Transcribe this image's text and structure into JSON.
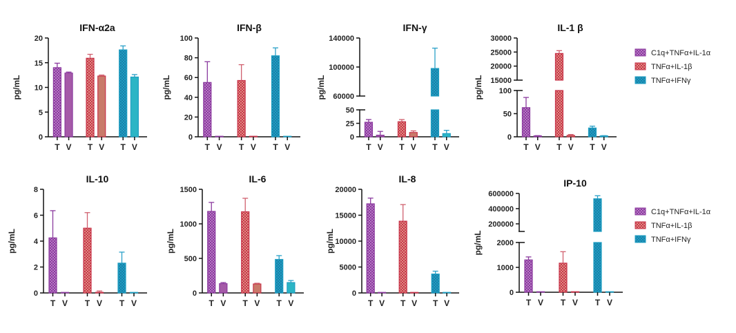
{
  "chart_data": [
    {
      "type": "bar",
      "title": "IFN-α2a",
      "ylabel": "pg/mL",
      "categories": [
        "T",
        "V",
        "T",
        "V",
        "T",
        "V"
      ],
      "ylim": [
        0,
        20
      ],
      "yticks": [
        0,
        5,
        10,
        15,
        20
      ],
      "series": [
        {
          "name": "C1q+TNFα+IL-1α",
          "values": [
            14.0,
            12.9
          ],
          "errors": [
            0.9,
            0.2
          ]
        },
        {
          "name": "TNFα+IL-1β",
          "values": [
            15.9,
            12.3
          ],
          "errors": [
            0.8,
            0.2
          ]
        },
        {
          "name": "TNFα+IFNγ",
          "values": [
            17.6,
            12.1
          ],
          "errors": [
            0.8,
            0.5
          ]
        }
      ]
    },
    {
      "type": "bar",
      "title": "IFN-β",
      "ylabel": "pg/mL",
      "categories": [
        "T",
        "V",
        "T",
        "V",
        "T",
        "V"
      ],
      "ylim": [
        0,
        100
      ],
      "yticks": [
        0,
        20,
        40,
        60,
        80,
        100
      ],
      "series": [
        {
          "name": "C1q+TNFα+IL-1α",
          "values": [
            55,
            0
          ],
          "errors": [
            21,
            0
          ]
        },
        {
          "name": "TNFα+IL-1β",
          "values": [
            57,
            0.5
          ],
          "errors": [
            16,
            0
          ]
        },
        {
          "name": "TNFα+IFNγ",
          "values": [
            82,
            0
          ],
          "errors": [
            8,
            0
          ]
        }
      ]
    },
    {
      "type": "bar",
      "title": "IFN-γ",
      "ylabel": "pg/mL",
      "categories": [
        "T",
        "V",
        "T",
        "V",
        "T",
        "V"
      ],
      "broken_axis": {
        "lower": [
          0,
          50
        ],
        "upper": [
          60000,
          140000
        ]
      },
      "yticks_lower": [
        0,
        25,
        50
      ],
      "yticks_upper": [
        60000,
        100000,
        140000
      ],
      "series": [
        {
          "name": "C1q+TNFα+IL-1α",
          "values": [
            27,
            3
          ],
          "errors": [
            5,
            7
          ]
        },
        {
          "name": "TNFα+IL-1β",
          "values": [
            28,
            8
          ],
          "errors": [
            4,
            3
          ]
        },
        {
          "name": "TNFα+IFNγ",
          "values": [
            98000,
            6
          ],
          "errors": [
            28000,
            6
          ]
        }
      ]
    },
    {
      "type": "bar",
      "title": "IL-1 β",
      "ylabel": "pg/mL",
      "categories": [
        "T",
        "V",
        "T",
        "V",
        "T",
        "V"
      ],
      "broken_axis": {
        "lower": [
          0,
          100
        ],
        "upper": [
          15000,
          30000
        ]
      },
      "yticks_lower": [
        0,
        50,
        100
      ],
      "yticks_upper": [
        15000,
        20000,
        25000,
        30000
      ],
      "series": [
        {
          "name": "C1q+TNFα+IL-1α",
          "values": [
            63,
            2
          ],
          "errors": [
            22,
            0.5
          ]
        },
        {
          "name": "TNFα+IL-1β",
          "values": [
            24500,
            3
          ],
          "errors": [
            1000,
            2
          ]
        },
        {
          "name": "TNFα+IFNγ",
          "values": [
            19,
            2
          ],
          "errors": [
            4,
            0.5
          ]
        }
      ]
    },
    {
      "type": "bar",
      "title": "IL-10",
      "ylabel": "pg/mL",
      "categories": [
        "T",
        "V",
        "T",
        "V",
        "T",
        "V"
      ],
      "ylim": [
        0,
        8
      ],
      "yticks": [
        0,
        2,
        4,
        6,
        8
      ],
      "series": [
        {
          "name": "C1q+TNFα+IL-1α",
          "values": [
            4.25,
            0
          ],
          "errors": [
            2.1,
            0
          ]
        },
        {
          "name": "TNFα+IL-1β",
          "values": [
            5.0,
            0.05
          ],
          "errors": [
            1.2,
            0.1
          ]
        },
        {
          "name": "TNFα+IFNγ",
          "values": [
            2.3,
            0
          ],
          "errors": [
            0.85,
            0
          ]
        }
      ]
    },
    {
      "type": "bar",
      "title": "IL-6",
      "ylabel": "pg/mL",
      "categories": [
        "T",
        "V",
        "T",
        "V",
        "T",
        "V"
      ],
      "ylim": [
        0,
        1500
      ],
      "yticks": [
        0,
        500,
        1000,
        1500
      ],
      "series": [
        {
          "name": "C1q+TNFα+IL-1α",
          "values": [
            1180,
            135
          ],
          "errors": [
            130,
            15
          ]
        },
        {
          "name": "TNFα+IL-1β",
          "values": [
            1175,
            130
          ],
          "errors": [
            195,
            10
          ]
        },
        {
          "name": "TNFα+IFNγ",
          "values": [
            485,
            150
          ],
          "errors": [
            55,
            30
          ]
        }
      ]
    },
    {
      "type": "bar",
      "title": "IL-8",
      "ylabel": "pg/mL",
      "categories": [
        "T",
        "V",
        "T",
        "V",
        "T",
        "V"
      ],
      "ylim": [
        0,
        20000
      ],
      "yticks": [
        0,
        5000,
        10000,
        15000,
        20000
      ],
      "series": [
        {
          "name": "C1q+TNFα+IL-1α",
          "values": [
            17200,
            50
          ],
          "errors": [
            1100,
            0
          ]
        },
        {
          "name": "TNFα+IL-1β",
          "values": [
            13850,
            50
          ],
          "errors": [
            3200,
            0
          ]
        },
        {
          "name": "TNFα+IFNγ",
          "values": [
            3650,
            50
          ],
          "errors": [
            550,
            0
          ]
        }
      ]
    },
    {
      "type": "bar",
      "title": "IP-10",
      "ylabel": "pg/mL",
      "categories": [
        "T",
        "V",
        "T",
        "V",
        "T",
        "V"
      ],
      "broken_axis": {
        "lower": [
          0,
          2000
        ],
        "upper": [
          100000,
          600000
        ]
      },
      "yticks_lower": [
        0,
        1000,
        2000
      ],
      "yticks_upper": [
        200000,
        400000,
        600000
      ],
      "series": [
        {
          "name": "C1q+TNFα+IL-1α",
          "values": [
            1300,
            0
          ],
          "errors": [
            120,
            0
          ]
        },
        {
          "name": "TNFα+IL-1β",
          "values": [
            1170,
            5
          ],
          "errors": [
            460,
            0
          ]
        },
        {
          "name": "TNFα+IFNγ",
          "values": [
            530000,
            5
          ],
          "errors": [
            40000,
            0
          ]
        }
      ]
    }
  ],
  "legend": {
    "items": [
      {
        "label": "C1q+TNFα+IL-1α",
        "color": "#8B3A9E"
      },
      {
        "label": "TNFα+IL-1β",
        "color": "#C8344A"
      },
      {
        "label": "TNFα+IFNγ",
        "color": "#1E9EC2"
      }
    ]
  },
  "colors": {
    "purple_T": "#8B3A9E",
    "purple_V": "#A55AA8",
    "red_T": "#C8344A",
    "red_V": "#C97A6A",
    "blue_T": "#1E9EC2",
    "blue_V": "#2BB5C5"
  }
}
